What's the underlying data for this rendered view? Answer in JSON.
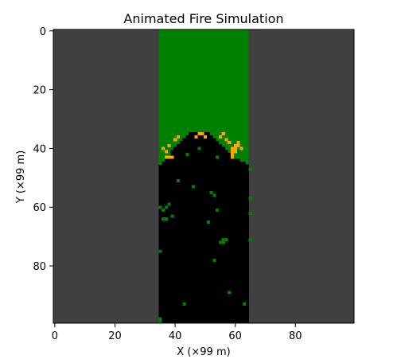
{
  "chart_data": {
    "type": "heatmap",
    "title": "Animated Fire Simulation",
    "xlabel": "X (×99 m)",
    "ylabel": "Y (×99 m)",
    "xlim": [
      0,
      99
    ],
    "ylim": [
      99,
      0
    ],
    "xticks": [
      "0",
      "20",
      "40",
      "60",
      "80"
    ],
    "yticks": [
      "0",
      "20",
      "40",
      "60",
      "80"
    ],
    "grid": false,
    "states": {
      "empty": "#404040",
      "tree": "#008000",
      "burning": "#ffa500",
      "burnt": "#000000"
    },
    "regions": [
      {
        "state": "empty",
        "x": [
          0,
          35
        ],
        "y": [
          0,
          100
        ]
      },
      {
        "state": "empty",
        "x": [
          65,
          100
        ],
        "y": [
          0,
          100
        ]
      },
      {
        "state": "tree",
        "x": [
          35,
          65
        ],
        "y": [
          0,
          100
        ]
      }
    ],
    "burnt_front_top_y": [
      46,
      45,
      44,
      43,
      41,
      40,
      39,
      38,
      37,
      36,
      35,
      35,
      35,
      35,
      35,
      35,
      35,
      36,
      37,
      38,
      39,
      40,
      41,
      42,
      43,
      44,
      44,
      45,
      45,
      46
    ],
    "burning_cells": [
      [
        37,
        43
      ],
      [
        38,
        43
      ],
      [
        39,
        43
      ],
      [
        36,
        40
      ],
      [
        37,
        41
      ],
      [
        38,
        39
      ],
      [
        40,
        37
      ],
      [
        41,
        36
      ],
      [
        47,
        36
      ],
      [
        48,
        35
      ],
      [
        49,
        35
      ],
      [
        50,
        36
      ],
      [
        55,
        36
      ],
      [
        56,
        35
      ],
      [
        57,
        37
      ],
      [
        58,
        38
      ],
      [
        59,
        40
      ],
      [
        59,
        41
      ],
      [
        59,
        42
      ],
      [
        59,
        43
      ],
      [
        60,
        39
      ],
      [
        60,
        40
      ],
      [
        60,
        41
      ],
      [
        61,
        38
      ],
      [
        61,
        39
      ],
      [
        62,
        40
      ]
    ],
    "unburnt_tree_cells": [
      [
        35,
        45
      ],
      [
        44,
        42
      ],
      [
        54,
        43
      ],
      [
        48,
        40
      ],
      [
        35,
        60
      ],
      [
        36,
        61
      ],
      [
        37,
        60
      ],
      [
        38,
        59
      ],
      [
        37,
        64
      ],
      [
        36,
        64
      ],
      [
        39,
        63
      ],
      [
        41,
        51
      ],
      [
        46,
        53
      ],
      [
        52,
        55
      ],
      [
        53,
        56
      ],
      [
        54,
        61
      ],
      [
        51,
        65
      ],
      [
        56,
        71
      ],
      [
        57,
        71
      ],
      [
        56,
        72
      ],
      [
        55,
        72
      ],
      [
        53,
        78
      ],
      [
        35,
        75
      ],
      [
        43,
        93
      ],
      [
        58,
        89
      ],
      [
        63,
        93
      ],
      [
        65,
        71
      ],
      [
        65,
        57
      ],
      [
        65,
        62
      ],
      [
        65,
        47
      ],
      [
        35,
        98
      ],
      [
        35,
        99
      ]
    ]
  }
}
